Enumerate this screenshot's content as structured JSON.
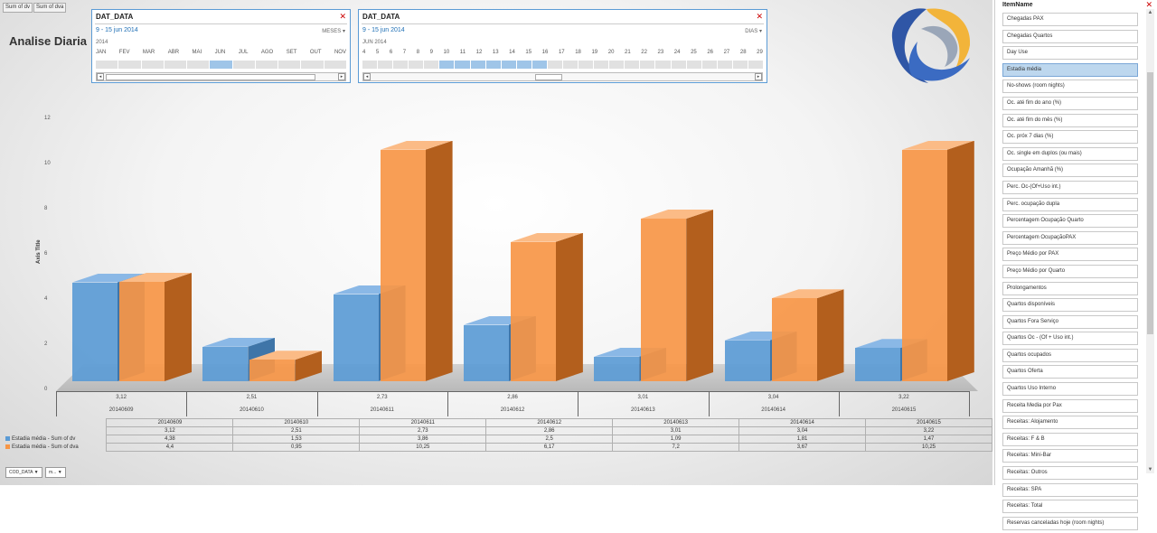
{
  "field_buttons": [
    "Sum of dv",
    "Sum of dva"
  ],
  "title": "Analise Diaria",
  "slicer_months": {
    "header": "DAT_DATA",
    "range": "9 - 15 jun 2014",
    "level": "MESES",
    "year": "2014",
    "labels": [
      "JAN",
      "FEV",
      "MAR",
      "ABR",
      "MAI",
      "JUN",
      "JUL",
      "AGO",
      "SET",
      "OUT",
      "NOV"
    ],
    "selected": 5
  },
  "slicer_days": {
    "header": "DAT_DATA",
    "range": "9 - 15 jun 2014",
    "level": "DIAS",
    "year": "JUN 2014",
    "labels": [
      "4",
      "5",
      "6",
      "7",
      "8",
      "9",
      "10",
      "11",
      "12",
      "13",
      "14",
      "15",
      "16",
      "17",
      "18",
      "19",
      "20",
      "21",
      "22",
      "23",
      "24",
      "25",
      "26",
      "27",
      "28",
      "29"
    ],
    "selected_from": 5,
    "selected_to": 11
  },
  "chart_data": {
    "type": "bar",
    "ylabel": "Axis Title",
    "ylim": [
      0,
      12
    ],
    "yticks": [
      "0",
      "2",
      "4",
      "6",
      "8",
      "10",
      "12"
    ],
    "categories": [
      "20140609",
      "20140610",
      "20140611",
      "20140612",
      "20140613",
      "20140614",
      "20140615"
    ],
    "dv_labels": [
      "3,12",
      "2,51",
      "2,73",
      "2,86",
      "3,01",
      "3,04",
      "3,22"
    ],
    "series": [
      {
        "name": "Estadia média - Sum of dv",
        "color": "#5b9bd5",
        "values": [
          4.38,
          1.53,
          3.86,
          2.5,
          1.09,
          1.81,
          1.47
        ],
        "labels": [
          "4,38",
          "1,53",
          "3,86",
          "2,5",
          "1,09",
          "1,81",
          "1,47"
        ]
      },
      {
        "name": "Estadia média - Sum of dva",
        "color": "#f79646",
        "values": [
          4.4,
          0.95,
          10.25,
          6.17,
          7.2,
          3.67,
          10.25
        ],
        "labels": [
          "4,4",
          "0,95",
          "10,25",
          "6,17",
          "7,2",
          "3,67",
          "10,25"
        ]
      }
    ]
  },
  "bottom_filters": [
    "COD_DATA",
    "m..."
  ],
  "item_panel": {
    "header": "ItemName",
    "selected": "Estadia média",
    "items": [
      "Chegadas PAX",
      "Chegadas Quartos",
      "Day Use",
      "Estadia média",
      "No-shows (room nights)",
      "Oc. até fim do ano (%)",
      "Oc. até fim do mês (%)",
      "Oc. próx 7 dias (%)",
      "Oc. single em duplos (ou mais)",
      "Ocupação Amanhã (%)",
      "Perc. Oc-(Of+Uso int.)",
      "Perc. ocupação dupla",
      "Percentagem Ocupação Quarto",
      "Percentagem OcupaçãoPAX",
      "Preço Médio por PAX",
      "Preço Médio por Quarto",
      "Prolongamentos",
      "Quartos disponíveis",
      "Quartos Fora Serviço",
      "Quartos Oc - (Of + Uso int.)",
      "Quartos ocupados",
      "Quartos Oferta",
      "Quartos Uso Interno",
      "Receita Media por Pax",
      "Receitas: Alojamento",
      "Receitas: F & B",
      "Receitas: Mini-Bar",
      "Receitas: Outros",
      "Receitas: SPA",
      "Receitas: Total",
      "Reservas canceladas hoje (room nights)"
    ]
  }
}
